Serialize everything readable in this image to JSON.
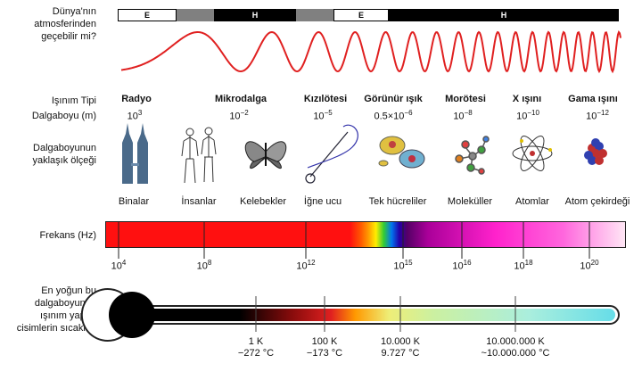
{
  "labels": {
    "atmosphere": [
      "Dünya'nın",
      "atmosferinden",
      "geçebilir mi?"
    ],
    "radiation_type": "Işınım Tipi",
    "wavelength": "Dalgaboyu (m)",
    "scale": [
      "Dalgaboyunun",
      "yaklaşık ölçeği"
    ],
    "frequency": "Frekans (Hz)",
    "temperature": [
      "En yoğun bu",
      "dalgaboyunda",
      "ışınım yapan",
      "cisimlerin sıcaklığı"
    ]
  },
  "atmosphere_bar": [
    {
      "text": "E",
      "color": "#ffffff",
      "textcolor": "#000000"
    },
    {
      "text": "",
      "color": "#808080",
      "textcolor": "#000000"
    },
    {
      "text": "H",
      "color": "#000000",
      "textcolor": "#ffffff"
    },
    {
      "text": "",
      "color": "#808080",
      "textcolor": "#000000"
    },
    {
      "text": "E",
      "color": "#ffffff",
      "textcolor": "#000000"
    },
    {
      "text": "H",
      "color": "#000000",
      "textcolor": "#ffffff"
    }
  ],
  "bands": [
    {
      "name": "Radyo",
      "base": "10",
      "exp": "3"
    },
    {
      "name": "Mikrodalga",
      "base": "10",
      "exp": "−2"
    },
    {
      "name": "Kızılötesi",
      "base": "10",
      "exp": "−5"
    },
    {
      "name": "Görünür ışık",
      "base": "0.5×10",
      "exp": "−6"
    },
    {
      "name": "Morötesi",
      "base": "10",
      "exp": "−8"
    },
    {
      "name": "X ışını",
      "base": "10",
      "exp": "−10"
    },
    {
      "name": "Gama ışını",
      "base": "10",
      "exp": "−12"
    }
  ],
  "scales": [
    "Binalar",
    "İnsanlar",
    "Kelebekler",
    "İğne ucu",
    "Tek hücreliler",
    "Moleküller",
    "Atomlar",
    "Atom çekirdeği"
  ],
  "frequency_ticks": [
    {
      "base": "10",
      "exp": "4"
    },
    {
      "base": "10",
      "exp": "8"
    },
    {
      "base": "10",
      "exp": "12"
    },
    {
      "base": "10",
      "exp": "15"
    },
    {
      "base": "10",
      "exp": "16"
    },
    {
      "base": "10",
      "exp": "18"
    },
    {
      "base": "10",
      "exp": "20"
    }
  ],
  "temperatures": [
    {
      "k": "1 K",
      "c": "−272 °C"
    },
    {
      "k": "100 K",
      "c": "−173 °C"
    },
    {
      "k": "10.000 K",
      "c": "9.727 °C"
    },
    {
      "k": "10.000.000 K",
      "c": "~10.000.000 °C"
    }
  ],
  "colors": {
    "wave": "#e02020",
    "bar_red": "#ff0000",
    "bar_magenta": "#ff33cc"
  }
}
